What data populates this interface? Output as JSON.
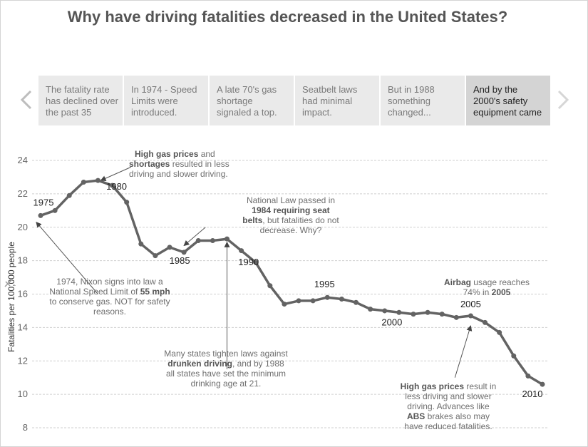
{
  "title": "Why have driving fatalities decreased in the United States?",
  "navigation": {
    "prev_icon": "chevron-left-icon",
    "next_icon": "chevron-right-icon"
  },
  "story_points": [
    "The fatality rate has declined over the past 35",
    "In 1974 - Speed Limits were introduced.",
    "A late 70's gas shortage signaled a top.",
    "Seatbelt laws had minimal impact.",
    "But in 1988 something changed...",
    "And by the 2000's safety equipment came"
  ],
  "active_story_point": 5,
  "annotations": {
    "gas_shortage": {
      "b1": "High gas prices",
      "t1": " and",
      "b2": "shortages",
      "t2": " resulted in less driving and slower driving."
    },
    "seatbelt": {
      "t1": "National Law passed in ",
      "b1": "1984 requiring seat belts",
      "t2": ", but fatalities do not decrease.  Why?"
    },
    "nixon": {
      "t1": "1974, Nixon signs into law a National Speed Limit of ",
      "b1": "55 mph",
      "t2": " to conserve gas.  NOT for safety reasons."
    },
    "drunk": {
      "t1": "Many states tighten laws against ",
      "b1": "drunken driving",
      "t2": ", and by 1988 all states have set the minimum drinking age at 21."
    },
    "airbag": {
      "b1": "Airbag",
      "t1": " usage reaches 74% in ",
      "b2": "2005"
    },
    "gas_2008": {
      "b1": "High gas prices",
      "t1": " result in less driving and slower driving. Advances like ",
      "b2": "ABS",
      "t2": " brakes also may have reduced fatalities."
    }
  },
  "chart_data": {
    "type": "line",
    "ylabel": "Fatalities per 100,000 people",
    "ylim": [
      8,
      24
    ],
    "yticks": [
      8,
      10,
      12,
      14,
      16,
      18,
      20,
      22,
      24
    ],
    "grid": true,
    "line_color": "#636363",
    "x": [
      1975,
      1976,
      1977,
      1978,
      1979,
      1980,
      1981,
      1982,
      1983,
      1984,
      1985,
      1986,
      1987,
      1988,
      1989,
      1990,
      1991,
      1992,
      1993,
      1994,
      1995,
      1996,
      1997,
      1998,
      1999,
      2000,
      2001,
      2002,
      2003,
      2004,
      2005,
      2006,
      2007,
      2008,
      2009,
      2010
    ],
    "values": [
      20.7,
      21.0,
      21.9,
      22.7,
      22.8,
      22.5,
      21.5,
      19.0,
      18.3,
      18.8,
      18.5,
      19.2,
      19.2,
      19.3,
      18.6,
      17.9,
      16.5,
      15.4,
      15.6,
      15.6,
      15.8,
      15.7,
      15.5,
      15.1,
      15.0,
      14.9,
      14.8,
      14.9,
      14.8,
      14.6,
      14.7,
      14.3,
      13.7,
      12.3,
      11.1,
      10.6
    ],
    "point_labels": [
      {
        "year": 1975,
        "label": "1975"
      },
      {
        "year": 1980,
        "label": "1980"
      },
      {
        "year": 1985,
        "label": "1985"
      },
      {
        "year": 1990,
        "label": "1990"
      },
      {
        "year": 1995,
        "label": "1995"
      },
      {
        "year": 2000,
        "label": "2000"
      },
      {
        "year": 2005,
        "label": "2005"
      },
      {
        "year": 2010,
        "label": "2010"
      }
    ]
  }
}
